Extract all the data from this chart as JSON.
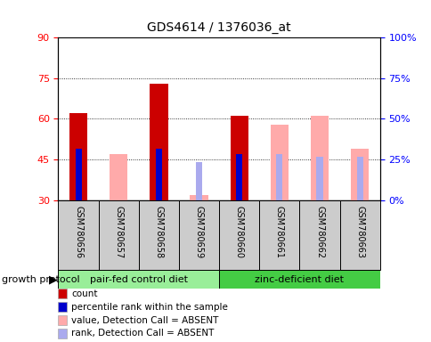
{
  "title": "GDS4614 / 1376036_at",
  "samples": [
    "GSM780656",
    "GSM780657",
    "GSM780658",
    "GSM780659",
    "GSM780660",
    "GSM780661",
    "GSM780662",
    "GSM780663"
  ],
  "count_values": [
    62,
    null,
    73,
    null,
    61,
    null,
    null,
    null
  ],
  "count_bottom": [
    30,
    null,
    30,
    null,
    30,
    null,
    null,
    null
  ],
  "percentile_values": [
    49,
    null,
    49,
    null,
    47,
    null,
    null,
    null
  ],
  "percentile_bottom": [
    30,
    null,
    30,
    null,
    30,
    null,
    null,
    null
  ],
  "absent_value_values": [
    null,
    47,
    null,
    32,
    null,
    58,
    61,
    49
  ],
  "absent_value_bottom": [
    30,
    30,
    null,
    30,
    null,
    30,
    30,
    30
  ],
  "absent_rank_values": [
    null,
    null,
    null,
    44,
    null,
    47,
    46,
    46
  ],
  "absent_rank_bottom": [
    null,
    null,
    null,
    30,
    null,
    30,
    30,
    30
  ],
  "group1_label": "pair-fed control diet",
  "group2_label": "zinc-deficient diet",
  "group1_indices": [
    0,
    1,
    2,
    3
  ],
  "group2_indices": [
    4,
    5,
    6,
    7
  ],
  "protocol_label": "growth protocol",
  "ylim_left": [
    30,
    90
  ],
  "ylim_right": [
    0,
    100
  ],
  "yticks_left": [
    30,
    45,
    60,
    75,
    90
  ],
  "yticks_right": [
    0,
    25,
    50,
    75,
    100
  ],
  "bar_width": 0.45,
  "count_color": "#cc0000",
  "percentile_color": "#0000cc",
  "absent_value_color": "#ffaaaa",
  "absent_rank_color": "#aaaaee",
  "group1_color": "#99ee99",
  "group2_color": "#44cc44",
  "grid_color": "black",
  "label_area_color": "#cccccc",
  "legend_items": [
    [
      "#cc0000",
      "count"
    ],
    [
      "#0000cc",
      "percentile rank within the sample"
    ],
    [
      "#ffaaaa",
      "value, Detection Call = ABSENT"
    ],
    [
      "#aaaaee",
      "rank, Detection Call = ABSENT"
    ]
  ]
}
